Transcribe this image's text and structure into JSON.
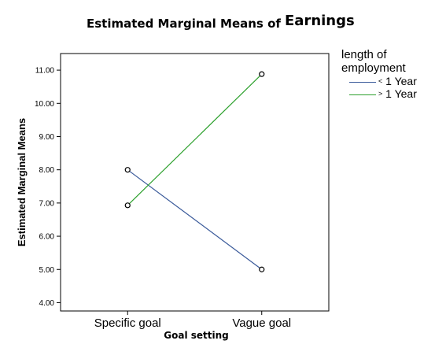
{
  "chart_data": {
    "type": "line",
    "title": "Estimated Marginal Means of",
    "title_emphasis": "Earnings",
    "xlabel": "Goal setting",
    "ylabel": "Estimated Marginal Means",
    "categories": [
      "Specific goal",
      "Vague goal"
    ],
    "ylim": [
      3.75,
      11.5
    ],
    "yticks": [
      "4.00",
      "5.00",
      "6.00",
      "7.00",
      "8.00",
      "9.00",
      "10.00",
      "11.00"
    ],
    "legend_title": "length of employment",
    "legend_placement": "right",
    "grid": false,
    "series": [
      {
        "name": "< 1 Year",
        "symbol": "<",
        "number": "1 Year",
        "color": "#3a5a9a",
        "values": [
          8.0,
          5.0
        ]
      },
      {
        "name": "> 1 Year",
        "symbol": ">",
        "number": "1 Year",
        "color": "#2ca02c",
        "values": [
          6.93,
          10.88
        ]
      }
    ]
  }
}
